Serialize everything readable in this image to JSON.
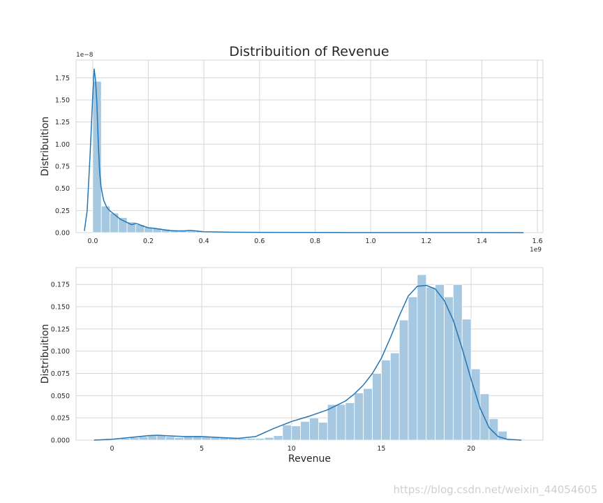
{
  "title": "Distribuition of Revenue",
  "watermark": "https://blog.csdn.net/weixin_44054605",
  "colors": {
    "bar": "#a6c8e0",
    "line": "#2375b4",
    "grid": "#d6d6d6"
  },
  "chart_data": [
    {
      "type": "bar",
      "ylabel": "Distribuition",
      "xlabel": "",
      "x_offset_label": "1e9",
      "y_offset_label": "1e−8",
      "xlim": [
        -0.06,
        1.62
      ],
      "ylim": [
        0,
        1.95
      ],
      "xticks": [
        0.0,
        0.2,
        0.4,
        0.6,
        0.8,
        1.0,
        1.2,
        1.4,
        1.6
      ],
      "xtick_labels": [
        "0.0",
        "0.2",
        "0.4",
        "0.6",
        "0.8",
        "1.0",
        "1.2",
        "1.4",
        "1.6"
      ],
      "yticks": [
        0,
        0.25,
        0.5,
        0.75,
        1.0,
        1.25,
        1.5,
        1.75
      ],
      "ytick_labels": [
        "0.00",
        "0.25",
        "0.50",
        "0.75",
        "1.00",
        "1.25",
        "1.50",
        "1.75"
      ],
      "grid": true,
      "bin_start": 0.0,
      "bin_width": 0.0309,
      "values": [
        1.71,
        0.3,
        0.22,
        0.17,
        0.12,
        0.09,
        0.06,
        0.05,
        0.04,
        0.03,
        0.025,
        0.02,
        0.02,
        0.015,
        0.01,
        0.01,
        0.008,
        0.007,
        0.006,
        0.005,
        0.005,
        0.004,
        0.004,
        0.003,
        0.003,
        0.003,
        0.002,
        0.002,
        0.002,
        0.002,
        0.002,
        0.002,
        0.002,
        0.002,
        0.002,
        0.002,
        0.002,
        0.002,
        0.002,
        0.002,
        0.002,
        0.002,
        0.002,
        0.002,
        0.002,
        0.002,
        0.002,
        0.002,
        0.002,
        0.002
      ],
      "kde": {
        "x": [
          -0.03,
          -0.02,
          -0.01,
          0.0,
          0.005,
          0.01,
          0.015,
          0.02,
          0.025,
          0.03,
          0.035,
          0.04,
          0.05,
          0.06,
          0.08,
          0.1,
          0.12,
          0.14,
          0.15,
          0.16,
          0.18,
          0.2,
          0.22,
          0.24,
          0.27,
          0.3,
          0.33,
          0.35,
          0.37,
          0.4,
          0.5,
          0.6,
          0.8,
          1.0,
          1.2,
          1.4,
          1.55
        ],
        "y": [
          0.02,
          0.25,
          0.85,
          1.55,
          1.85,
          1.72,
          1.45,
          1.0,
          0.68,
          0.52,
          0.43,
          0.36,
          0.29,
          0.25,
          0.2,
          0.15,
          0.12,
          0.09,
          0.1,
          0.1,
          0.075,
          0.055,
          0.05,
          0.04,
          0.025,
          0.02,
          0.02,
          0.025,
          0.02,
          0.01,
          0.005,
          0.003,
          0.002,
          0.001,
          0.001,
          0.0005,
          0.0002
        ]
      }
    },
    {
      "type": "bar",
      "ylabel": "Distribuition",
      "xlabel": "Revenue",
      "xlim": [
        -2,
        24
      ],
      "ylim": [
        0,
        0.194
      ],
      "xticks": [
        0,
        5,
        10,
        15,
        20
      ],
      "xtick_labels": [
        "0",
        "5",
        "10",
        "15",
        "20"
      ],
      "yticks": [
        0,
        0.025,
        0.05,
        0.075,
        0.1,
        0.125,
        0.15,
        0.175
      ],
      "ytick_labels": [
        "0.000",
        "0.025",
        "0.050",
        "0.075",
        "0.100",
        "0.125",
        "0.150",
        "0.175"
      ],
      "grid": true,
      "bin_start": 0.0,
      "bin_width": 0.5,
      "values": [
        0.001,
        0.002,
        0.003,
        0.004,
        0.005,
        0.005,
        0.004,
        0.003,
        0.004,
        0.005,
        0.004,
        0.003,
        0.003,
        0.003,
        0.002,
        0.002,
        0.002,
        0.003,
        0.005,
        0.017,
        0.016,
        0.021,
        0.025,
        0.02,
        0.04,
        0.04,
        0.042,
        0.053,
        0.058,
        0.075,
        0.09,
        0.098,
        0.135,
        0.161,
        0.186,
        0.172,
        0.175,
        0.161,
        0.175,
        0.136,
        0.08,
        0.052,
        0.024,
        0.01
      ],
      "kde": {
        "x": [
          -1,
          0,
          1,
          2,
          2.5,
          3,
          4,
          5,
          6,
          7,
          8,
          9,
          10,
          11,
          12,
          13,
          13.5,
          14,
          14.5,
          15,
          15.5,
          16,
          16.5,
          17,
          17.5,
          18,
          18.5,
          19,
          19.5,
          20,
          20.5,
          21,
          21.5,
          22,
          22.8
        ],
        "y": [
          0.0,
          0.001,
          0.003,
          0.005,
          0.0055,
          0.005,
          0.004,
          0.004,
          0.003,
          0.002,
          0.004,
          0.013,
          0.021,
          0.027,
          0.034,
          0.044,
          0.052,
          0.062,
          0.075,
          0.092,
          0.115,
          0.14,
          0.162,
          0.173,
          0.174,
          0.17,
          0.157,
          0.135,
          0.103,
          0.068,
          0.036,
          0.014,
          0.004,
          0.001,
          0.0
        ]
      }
    }
  ]
}
